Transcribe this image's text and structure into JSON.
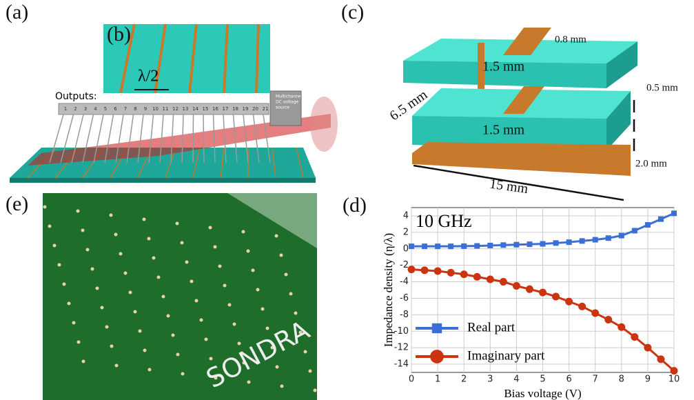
{
  "panels": {
    "a": {
      "label": "(a)",
      "outputs_label": "Outputs:",
      "output_numbers": [
        1,
        2,
        3,
        4,
        5,
        6,
        7,
        8,
        9,
        10,
        11,
        12,
        13,
        14,
        15,
        16,
        17,
        18,
        19,
        20,
        21
      ],
      "source_label": [
        "Multichanne",
        "DC voltage",
        "source"
      ]
    },
    "b": {
      "label": "(b)",
      "spacing": "λ/2"
    },
    "c": {
      "label": "(c)",
      "dims": [
        "0.8 mm",
        "1.5 mm",
        "0.5 mm",
        "6.5 mm",
        "1.5 mm",
        "2.0 mm",
        "15 mm"
      ]
    },
    "e": {
      "label": "(e)",
      "brand": "SONDRA"
    },
    "d": {
      "label": "(d)"
    }
  },
  "chart_data": {
    "type": "line",
    "annotation": "10 GHz",
    "x_label": "Bias voltage (V)",
    "y_label": "Impedance density (η/λ)",
    "x": [
      0,
      0.5,
      1,
      1.5,
      2,
      2.5,
      3,
      3.5,
      4,
      4.5,
      5,
      5.5,
      6,
      6.5,
      7,
      7.5,
      8,
      8.5,
      9,
      9.5,
      10
    ],
    "series": [
      {
        "name": "Real part",
        "color": "#3b6fd6",
        "marker": "square",
        "values": [
          0.3,
          0.3,
          0.3,
          0.3,
          0.32,
          0.35,
          0.4,
          0.45,
          0.5,
          0.55,
          0.6,
          0.7,
          0.8,
          0.95,
          1.1,
          1.3,
          1.6,
          2.2,
          2.9,
          3.6,
          4.3
        ]
      },
      {
        "name": "Imaginary part",
        "color": "#cc3311",
        "marker": "circle",
        "values": [
          -2.5,
          -2.6,
          -2.7,
          -2.9,
          -3.1,
          -3.4,
          -3.7,
          -4.0,
          -4.5,
          -4.9,
          -5.3,
          -5.8,
          -6.4,
          -7.0,
          -7.8,
          -8.6,
          -9.5,
          -10.7,
          -12.0,
          -13.4,
          -14.8
        ]
      }
    ],
    "xlim": [
      0,
      10
    ],
    "xticks": [
      0,
      1,
      2,
      3,
      4,
      5,
      6,
      7,
      8,
      9,
      10
    ],
    "ylim": [
      -15,
      5
    ],
    "yticks": [
      -14,
      -12,
      -10,
      -8,
      -6,
      -4,
      -2,
      0,
      2,
      4
    ],
    "grid": true,
    "legend": "lower left"
  }
}
